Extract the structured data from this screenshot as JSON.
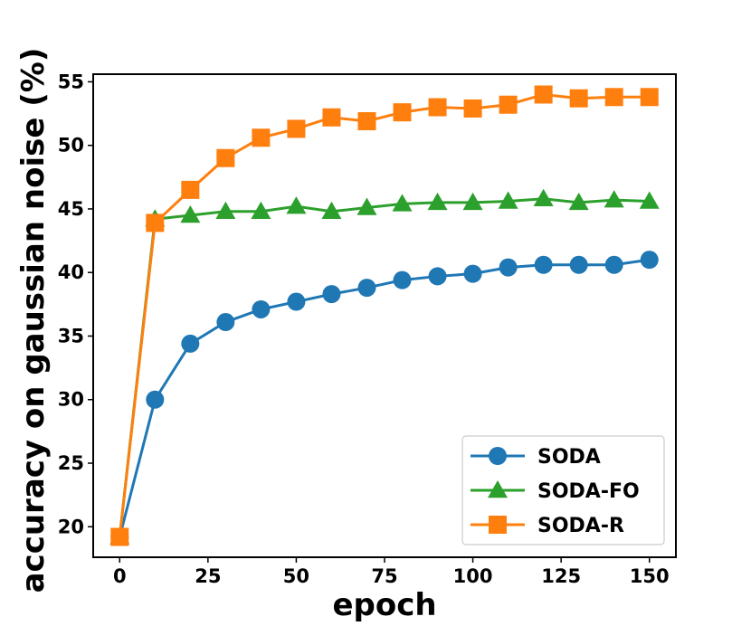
{
  "chart_data": {
    "type": "line",
    "title": "",
    "xlabel": "epoch",
    "ylabel": "accuracy on gaussian noise (%)",
    "xlim": [
      -7.5,
      157.5
    ],
    "ylim": [
      17.6,
      55.6
    ],
    "xticks": [
      0,
      25,
      50,
      75,
      100,
      125,
      150
    ],
    "yticks": [
      20,
      25,
      30,
      35,
      40,
      45,
      50,
      55
    ],
    "x": [
      0,
      10,
      20,
      30,
      40,
      50,
      60,
      70,
      80,
      90,
      100,
      110,
      120,
      130,
      140,
      150
    ],
    "legend_position": "lower-right",
    "series": [
      {
        "name": "SODA",
        "color": "#1f77b4",
        "marker": "circle",
        "values": [
          19.2,
          30.0,
          34.4,
          36.1,
          37.1,
          37.7,
          38.3,
          38.8,
          39.4,
          39.7,
          39.9,
          40.4,
          40.6,
          40.6,
          40.6,
          41.0
        ]
      },
      {
        "name": "SODA-FO",
        "color": "#2ca02c",
        "marker": "triangle",
        "values": [
          19.2,
          44.2,
          44.5,
          44.8,
          44.8,
          45.2,
          44.8,
          45.1,
          45.4,
          45.5,
          45.5,
          45.6,
          45.8,
          45.5,
          45.7,
          45.6
        ]
      },
      {
        "name": "SODA-R",
        "color": "#ff7f0e",
        "marker": "square",
        "values": [
          19.2,
          43.9,
          46.5,
          49.0,
          50.6,
          51.3,
          52.2,
          51.9,
          52.6,
          53.0,
          52.9,
          53.2,
          54.0,
          53.7,
          53.8,
          53.8
        ]
      }
    ]
  }
}
